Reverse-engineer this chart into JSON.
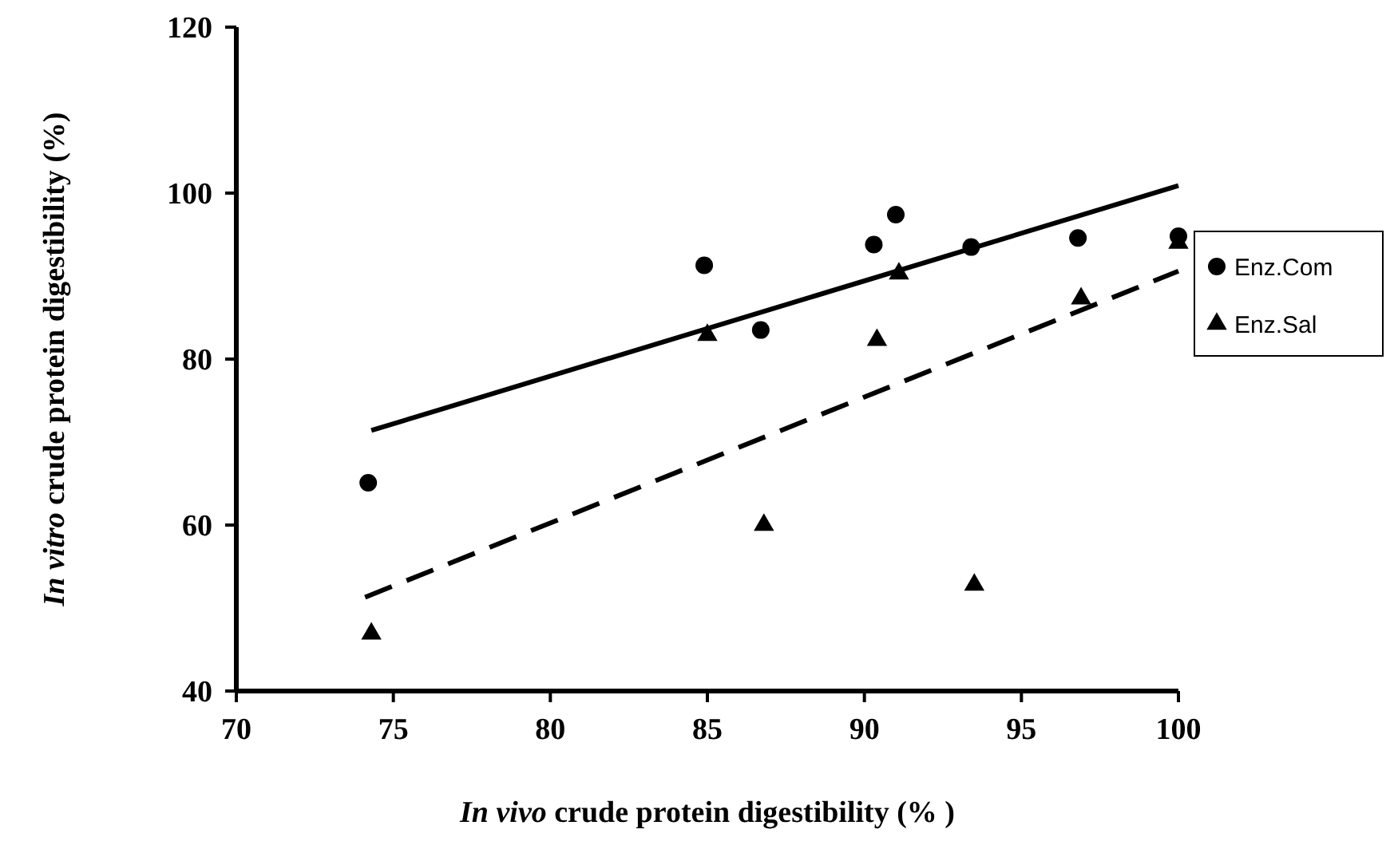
{
  "chart_data": {
    "type": "scatter",
    "xlabel": "In vivo crude protein digestibility (% )",
    "ylabel": "In vitro crude protein digestibility (%)",
    "xlim": [
      70,
      100
    ],
    "xticks": [
      70,
      75,
      80,
      85,
      90,
      95,
      100
    ],
    "ylim": [
      40,
      120
    ],
    "yticks": [
      40,
      60,
      80,
      100,
      120
    ],
    "legend": "right",
    "grid": false,
    "series": [
      {
        "name": "Enz.Com",
        "color": "#000000",
        "marker": "circle",
        "x": [
          74.2,
          84.9,
          86.7,
          90.3,
          91.0,
          93.4,
          96.8,
          100
        ],
        "values": [
          65.1,
          91.3,
          83.5,
          93.8,
          97.4,
          93.5,
          94.6,
          94.8
        ]
      },
      {
        "name": "Enz.Sal",
        "color": "#000000",
        "marker": "triangle",
        "x": [
          74.3,
          85.0,
          86.8,
          90.4,
          91.1,
          93.5,
          96.9,
          100
        ],
        "values": [
          46.9,
          82.9,
          60.0,
          82.3,
          90.3,
          52.8,
          87.3,
          94.0
        ]
      },
      {
        "type": "line",
        "color": "#000000",
        "line_style": "solid",
        "marker": "none",
        "x": [
          74.3,
          100
        ],
        "values": [
          71.4,
          100.9
        ]
      },
      {
        "type": "line",
        "color": "#000000",
        "line_style": "dashed",
        "marker": "none",
        "x": [
          74.1,
          100
        ],
        "values": [
          51.3,
          90.6
        ]
      }
    ]
  }
}
